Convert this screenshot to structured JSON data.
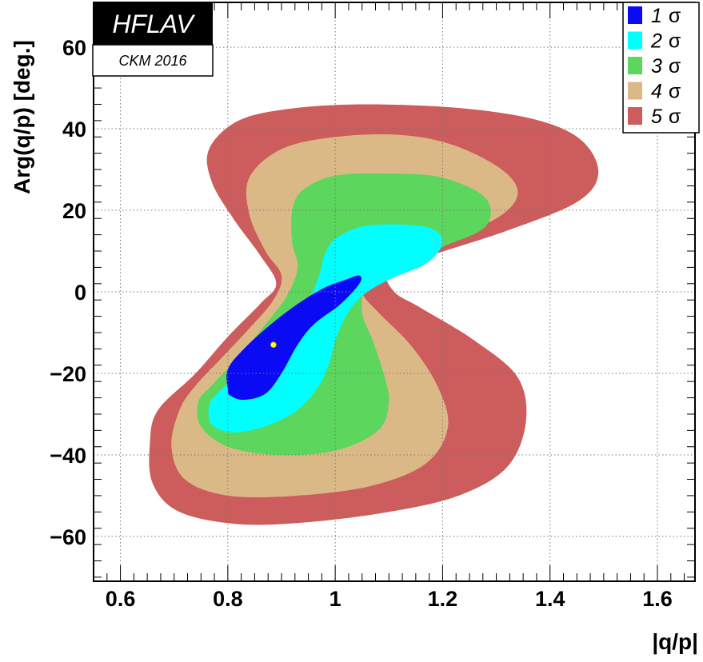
{
  "chart_data": {
    "type": "contour",
    "xlabel": "|q/p|",
    "ylabel": "Arg(q/p) [deg.]",
    "xlim": [
      0.55,
      1.67
    ],
    "ylim": [
      -71,
      71
    ],
    "x_ticks": [
      {
        "value": 0.6,
        "label": "0.6"
      },
      {
        "value": 0.8,
        "label": "0.8"
      },
      {
        "value": 1.0,
        "label": "1"
      },
      {
        "value": 1.2,
        "label": "1.2"
      },
      {
        "value": 1.4,
        "label": "1.4"
      },
      {
        "value": 1.6,
        "label": "1.6"
      }
    ],
    "y_ticks": [
      {
        "value": -60,
        "label": "−60"
      },
      {
        "value": -40,
        "label": "−40"
      },
      {
        "value": -20,
        "label": "−20"
      },
      {
        "value": 0,
        "label": "0"
      },
      {
        "value": 20,
        "label": "20"
      },
      {
        "value": 40,
        "label": "40"
      },
      {
        "value": 60,
        "label": "60"
      }
    ],
    "grid": true,
    "best_fit": {
      "x": 0.885,
      "y": -13
    },
    "legend_position": "top-right",
    "legend": [
      {
        "num": "1",
        "symbol": "σ",
        "color": "#0a0af5"
      },
      {
        "num": "2",
        "symbol": "σ",
        "color": "#00ffff"
      },
      {
        "num": "3",
        "symbol": "σ",
        "color": "#5cd65c"
      },
      {
        "num": "4",
        "symbol": "σ",
        "color": "#dbb987"
      },
      {
        "num": "5",
        "symbol": "σ",
        "color": "#cd5c5c"
      }
    ],
    "contours": [
      {
        "level": "5",
        "color": "#cd5c5c",
        "points": [
          [
            0.74,
            -20
          ],
          [
            0.8,
            -11
          ],
          [
            0.86,
            -3
          ],
          [
            0.89,
            2
          ],
          [
            0.86,
            9
          ],
          [
            0.81,
            18
          ],
          [
            0.77,
            27
          ],
          [
            0.765,
            35
          ],
          [
            0.82,
            42
          ],
          [
            0.92,
            45
          ],
          [
            1.06,
            46
          ],
          [
            1.24,
            45
          ],
          [
            1.38,
            42
          ],
          [
            1.46,
            37
          ],
          [
            1.49,
            29
          ],
          [
            1.45,
            22
          ],
          [
            1.32,
            15
          ],
          [
            1.18,
            9
          ],
          [
            1.1,
            5
          ],
          [
            1.11,
            0
          ],
          [
            1.16,
            -4
          ],
          [
            1.26,
            -12
          ],
          [
            1.34,
            -21
          ],
          [
            1.355,
            -32
          ],
          [
            1.32,
            -43
          ],
          [
            1.23,
            -50
          ],
          [
            1.1,
            -54
          ],
          [
            0.95,
            -56.5
          ],
          [
            0.82,
            -57
          ],
          [
            0.71,
            -54
          ],
          [
            0.66,
            -47
          ],
          [
            0.655,
            -37
          ],
          [
            0.67,
            -29
          ]
        ]
      },
      {
        "level": "4",
        "color": "#dbb987",
        "points": [
          [
            0.74,
            -23
          ],
          [
            0.79,
            -16
          ],
          [
            0.84,
            -9
          ],
          [
            0.885,
            -2
          ],
          [
            0.9,
            4
          ],
          [
            0.87,
            10
          ],
          [
            0.84,
            19
          ],
          [
            0.84,
            28
          ],
          [
            0.9,
            35
          ],
          [
            1.0,
            38
          ],
          [
            1.12,
            38.5
          ],
          [
            1.22,
            36
          ],
          [
            1.31,
            30
          ],
          [
            1.34,
            24
          ],
          [
            1.3,
            18
          ],
          [
            1.2,
            13
          ],
          [
            1.12,
            10
          ],
          [
            1.06,
            6
          ],
          [
            1.05,
            0
          ],
          [
            1.08,
            -5
          ],
          [
            1.14,
            -13
          ],
          [
            1.19,
            -23
          ],
          [
            1.21,
            -33
          ],
          [
            1.17,
            -42
          ],
          [
            1.07,
            -47.5
          ],
          [
            0.93,
            -50
          ],
          [
            0.8,
            -50
          ],
          [
            0.72,
            -46
          ],
          [
            0.695,
            -38
          ],
          [
            0.71,
            -29
          ]
        ]
      },
      {
        "level": "3",
        "color": "#5cd65c",
        "points": [
          [
            0.77,
            -23
          ],
          [
            0.82,
            -16
          ],
          [
            0.87,
            -8
          ],
          [
            0.91,
            -1
          ],
          [
            0.93,
            6
          ],
          [
            0.92,
            12
          ],
          [
            0.92,
            20
          ],
          [
            0.94,
            25
          ],
          [
            1.0,
            28.5
          ],
          [
            1.1,
            29
          ],
          [
            1.2,
            28
          ],
          [
            1.28,
            23
          ],
          [
            1.28,
            16
          ],
          [
            1.2,
            11
          ],
          [
            1.12,
            6
          ],
          [
            1.06,
            1
          ],
          [
            1.05,
            -5
          ],
          [
            1.07,
            -12
          ],
          [
            1.09,
            -20
          ],
          [
            1.1,
            -27
          ],
          [
            1.08,
            -34
          ],
          [
            1.0,
            -39
          ],
          [
            0.89,
            -40
          ],
          [
            0.8,
            -38
          ],
          [
            0.75,
            -33
          ],
          [
            0.745,
            -27
          ]
        ]
      },
      {
        "level": "2",
        "color": "#00ffff",
        "points": [
          [
            0.78,
            -25
          ],
          [
            0.83,
            -19
          ],
          [
            0.87,
            -14
          ],
          [
            0.91,
            -8
          ],
          [
            0.95,
            -2
          ],
          [
            0.97,
            4
          ],
          [
            0.98,
            9
          ],
          [
            1.0,
            13
          ],
          [
            1.05,
            16
          ],
          [
            1.12,
            16.5
          ],
          [
            1.18,
            15.5
          ],
          [
            1.2,
            12
          ],
          [
            1.17,
            7
          ],
          [
            1.1,
            3
          ],
          [
            1.05,
            -1
          ],
          [
            1.02,
            -6
          ],
          [
            1.0,
            -12
          ],
          [
            0.99,
            -17
          ],
          [
            0.97,
            -23
          ],
          [
            0.93,
            -29
          ],
          [
            0.87,
            -33
          ],
          [
            0.81,
            -34.5
          ],
          [
            0.77,
            -32.5
          ],
          [
            0.765,
            -28
          ]
        ]
      },
      {
        "level": "1",
        "color": "#0a0af5",
        "points": [
          [
            0.8,
            -24
          ],
          [
            0.8,
            -19
          ],
          [
            0.83,
            -14
          ],
          [
            0.88,
            -8
          ],
          [
            0.93,
            -3
          ],
          [
            0.98,
            1
          ],
          [
            1.02,
            3
          ],
          [
            1.045,
            4
          ],
          [
            1.045,
            2
          ],
          [
            1.01,
            -3
          ],
          [
            0.96,
            -8
          ],
          [
            0.93,
            -13
          ],
          [
            0.9,
            -20
          ],
          [
            0.87,
            -25
          ],
          [
            0.83,
            -26.5
          ],
          [
            0.805,
            -25.5
          ]
        ]
      }
    ]
  },
  "branding": {
    "name": "HFLAV",
    "sub": "CKM 2016"
  },
  "colors": {
    "brand_bg": "#000000",
    "best_fit": "#ffff33",
    "grid": "#7a7a7a"
  }
}
